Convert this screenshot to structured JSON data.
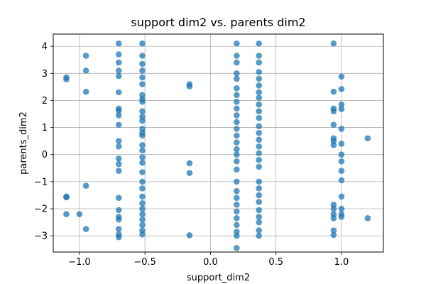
{
  "chart_data": {
    "type": "scatter",
    "title": "support dim2 vs. parents dim2",
    "xlabel": "support_dim2",
    "ylabel": "parents_dim2",
    "xlim": [
      -1.2,
      1.32
    ],
    "ylim": [
      -3.6,
      4.45
    ],
    "xticks": [
      -1.0,
      -0.5,
      0.0,
      0.5,
      1.0
    ],
    "xtick_labels": [
      "−1.0",
      "−0.5",
      "0.0",
      "0.5",
      "1.0"
    ],
    "yticks": [
      -3,
      -2,
      -1,
      0,
      1,
      2,
      3,
      4
    ],
    "ytick_labels": [
      "−3",
      "−2",
      "−1",
      "0",
      "1",
      "2",
      "3",
      "4"
    ],
    "grid": true,
    "color": "#1f77b4",
    "points": [
      [
        -1.1,
        2.85
      ],
      [
        -1.1,
        2.78
      ],
      [
        -1.1,
        -1.55
      ],
      [
        -1.1,
        -1.58
      ],
      [
        -1.1,
        -2.2
      ],
      [
        -0.95,
        3.65
      ],
      [
        -0.95,
        3.1
      ],
      [
        -0.95,
        2.32
      ],
      [
        -0.95,
        -1.15
      ],
      [
        -0.95,
        -2.75
      ],
      [
        -1.0,
        -2.2
      ],
      [
        -0.7,
        4.1
      ],
      [
        -0.7,
        3.7
      ],
      [
        -0.7,
        3.4
      ],
      [
        -0.7,
        3.1
      ],
      [
        -0.7,
        2.9
      ],
      [
        -0.7,
        2.3
      ],
      [
        -0.7,
        1.7
      ],
      [
        -0.7,
        1.62
      ],
      [
        -0.7,
        1.45
      ],
      [
        -0.7,
        1.1
      ],
      [
        -0.7,
        0.5
      ],
      [
        -0.7,
        0.3
      ],
      [
        -0.7,
        -0.15
      ],
      [
        -0.7,
        -0.35
      ],
      [
        -0.7,
        -0.6
      ],
      [
        -0.7,
        -1.6
      ],
      [
        -0.7,
        -2.05
      ],
      [
        -0.7,
        -2.3
      ],
      [
        -0.7,
        -2.4
      ],
      [
        -0.7,
        -2.75
      ],
      [
        -0.7,
        -2.95
      ],
      [
        -0.7,
        -3.05
      ],
      [
        -0.52,
        4.1
      ],
      [
        -0.52,
        3.65
      ],
      [
        -0.52,
        3.35
      ],
      [
        -0.52,
        3.1
      ],
      [
        -0.52,
        2.85
      ],
      [
        -0.52,
        2.6
      ],
      [
        -0.52,
        2.2
      ],
      [
        -0.52,
        2.05
      ],
      [
        -0.52,
        1.95
      ],
      [
        -0.52,
        1.6
      ],
      [
        -0.52,
        1.4
      ],
      [
        -0.52,
        1.25
      ],
      [
        -0.52,
        0.95
      ],
      [
        -0.52,
        0.8
      ],
      [
        -0.52,
        0.7
      ],
      [
        -0.52,
        0.35
      ],
      [
        -0.52,
        0.15
      ],
      [
        -0.52,
        -0.1
      ],
      [
        -0.52,
        -0.3
      ],
      [
        -0.52,
        -0.65
      ],
      [
        -0.52,
        -1.0
      ],
      [
        -0.52,
        -1.25
      ],
      [
        -0.52,
        -1.55
      ],
      [
        -0.52,
        -1.8
      ],
      [
        -0.52,
        -2.0
      ],
      [
        -0.52,
        -2.2
      ],
      [
        -0.52,
        -2.4
      ],
      [
        -0.52,
        -2.6
      ],
      [
        -0.52,
        -2.8
      ],
      [
        -0.52,
        -2.95
      ],
      [
        -0.16,
        2.6
      ],
      [
        -0.16,
        2.52
      ],
      [
        -0.16,
        -0.32
      ],
      [
        -0.16,
        -0.68
      ],
      [
        -0.16,
        -2.98
      ],
      [
        0.2,
        4.1
      ],
      [
        0.2,
        3.65
      ],
      [
        0.2,
        3.4
      ],
      [
        0.2,
        3.0
      ],
      [
        0.2,
        2.8
      ],
      [
        0.2,
        2.45
      ],
      [
        0.2,
        2.2
      ],
      [
        0.2,
        1.95
      ],
      [
        0.2,
        1.7
      ],
      [
        0.2,
        1.45
      ],
      [
        0.2,
        1.2
      ],
      [
        0.2,
        0.95
      ],
      [
        0.2,
        0.7
      ],
      [
        0.2,
        0.45
      ],
      [
        0.2,
        0.2
      ],
      [
        0.2,
        0.0
      ],
      [
        0.2,
        -0.25
      ],
      [
        0.2,
        -0.55
      ],
      [
        0.2,
        -1.0
      ],
      [
        0.2,
        -1.35
      ],
      [
        0.2,
        -1.6
      ],
      [
        0.2,
        -1.85
      ],
      [
        0.2,
        -2.1
      ],
      [
        0.2,
        -2.35
      ],
      [
        0.2,
        -2.6
      ],
      [
        0.2,
        -2.85
      ],
      [
        0.2,
        -3.0
      ],
      [
        0.2,
        -3.45
      ],
      [
        0.37,
        4.1
      ],
      [
        0.37,
        3.65
      ],
      [
        0.37,
        3.4
      ],
      [
        0.37,
        3.05
      ],
      [
        0.37,
        2.8
      ],
      [
        0.37,
        2.55
      ],
      [
        0.37,
        2.3
      ],
      [
        0.37,
        2.1
      ],
      [
        0.37,
        1.85
      ],
      [
        0.37,
        1.6
      ],
      [
        0.37,
        1.35
      ],
      [
        0.37,
        1.05
      ],
      [
        0.37,
        0.8
      ],
      [
        0.37,
        0.55
      ],
      [
        0.37,
        0.3
      ],
      [
        0.37,
        0.05
      ],
      [
        0.37,
        -0.2
      ],
      [
        0.37,
        -0.45
      ],
      [
        0.37,
        -1.0
      ],
      [
        0.37,
        -1.25
      ],
      [
        0.37,
        -1.5
      ],
      [
        0.37,
        -1.75
      ],
      [
        0.37,
        -2.05
      ],
      [
        0.37,
        -2.3
      ],
      [
        0.37,
        -2.5
      ],
      [
        0.37,
        -2.8
      ],
      [
        0.37,
        -3.0
      ],
      [
        0.94,
        4.1
      ],
      [
        0.94,
        2.32
      ],
      [
        0.94,
        1.7
      ],
      [
        0.94,
        1.6
      ],
      [
        0.94,
        1.1
      ],
      [
        0.94,
        0.6
      ],
      [
        0.94,
        0.5
      ],
      [
        0.94,
        0.35
      ],
      [
        0.94,
        -1.85
      ],
      [
        0.94,
        -2.0
      ],
      [
        0.94,
        -2.2
      ],
      [
        0.94,
        -2.35
      ],
      [
        0.94,
        -2.8
      ],
      [
        0.94,
        -2.97
      ],
      [
        1.0,
        2.88
      ],
      [
        1.0,
        2.42
      ],
      [
        1.0,
        1.85
      ],
      [
        1.0,
        1.68
      ],
      [
        1.0,
        0.95
      ],
      [
        1.0,
        0.4
      ],
      [
        1.0,
        0.0
      ],
      [
        1.0,
        -0.25
      ],
      [
        1.0,
        -0.6
      ],
      [
        1.0,
        -0.95
      ],
      [
        1.0,
        -1.55
      ],
      [
        1.0,
        -2.0
      ],
      [
        1.0,
        -2.2
      ],
      [
        1.0,
        -2.3
      ],
      [
        1.2,
        0.6
      ],
      [
        1.2,
        -2.35
      ]
    ]
  }
}
